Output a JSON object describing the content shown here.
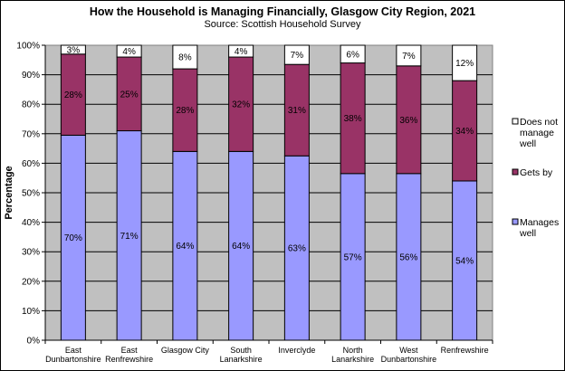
{
  "chart_data": {
    "type": "bar",
    "stacked": true,
    "title": "How the Household is Managing Financially, Glasgow City Region, 2021",
    "subtitle": "Source: Scottish Household Survey",
    "ylabel": "Percentage",
    "xlabel": "",
    "ylim": [
      0,
      100
    ],
    "yticks": [
      "0%",
      "10%",
      "20%",
      "30%",
      "40%",
      "50%",
      "60%",
      "70%",
      "80%",
      "90%",
      "100%"
    ],
    "grid": true,
    "legend_position": "right",
    "categories": [
      [
        "East",
        "Dunbartonshire"
      ],
      [
        "East",
        "Renfrewshire"
      ],
      [
        "Glasgow City"
      ],
      [
        "South",
        "Lanarkshire"
      ],
      [
        "Inverclyde"
      ],
      [
        "North",
        "Lanarkshire"
      ],
      [
        "West",
        "Dunbartonshire"
      ],
      [
        "Renfrewshire"
      ]
    ],
    "series": [
      {
        "name": "Manages well",
        "legend_lines": [
          "Manages",
          "well"
        ],
        "color": "#9999ff",
        "values": [
          69.5,
          71,
          64,
          64,
          62.5,
          56.5,
          56.5,
          54
        ],
        "labels": [
          "70%",
          "71%",
          "64%",
          "64%",
          "63%",
          "57%",
          "56%",
          "54%"
        ]
      },
      {
        "name": "Gets by",
        "legend_lines": [
          "Gets by"
        ],
        "color": "#993366",
        "values": [
          27.5,
          25,
          28,
          32,
          31,
          37.5,
          36.5,
          34
        ],
        "labels": [
          "28%",
          "25%",
          "28%",
          "32%",
          "31%",
          "38%",
          "36%",
          "34%"
        ]
      },
      {
        "name": "Does not manage well",
        "legend_lines": [
          "Does not",
          "manage",
          "well"
        ],
        "color": "#ffffff",
        "values": [
          3,
          4,
          8,
          4,
          6.5,
          6,
          7,
          12
        ],
        "labels": [
          "3%",
          "4%",
          "8%",
          "4%",
          "7%",
          "6%",
          "7%",
          "12%"
        ]
      }
    ],
    "colors": {
      "plot_background": "#c0c0c0",
      "gridline": "#000000"
    }
  }
}
